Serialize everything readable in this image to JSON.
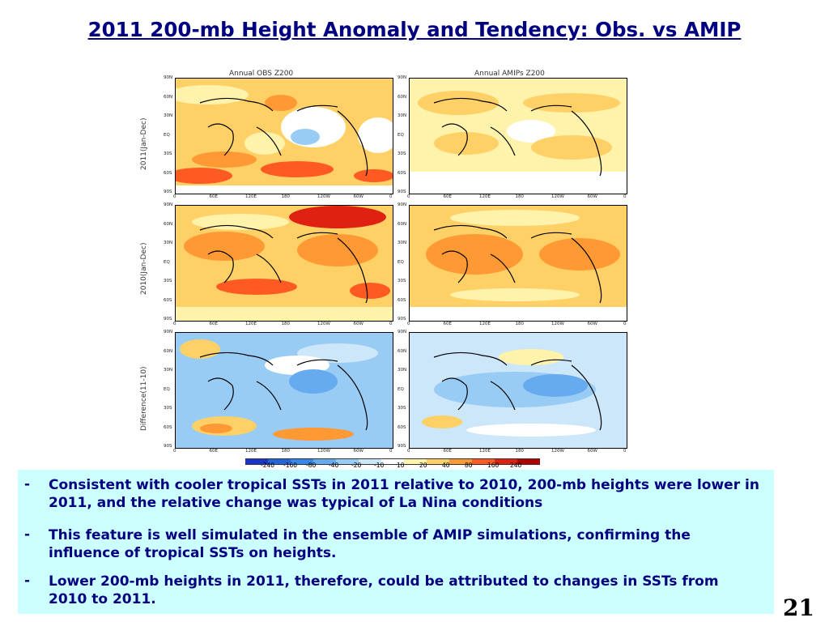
{
  "slide": {
    "title": "2011 200-mb Height Anomaly and Tendency: Obs. vs AMIP",
    "page_number": "21"
  },
  "figure": {
    "column_titles": [
      "Annual OBS Z200",
      "Annual AMIPs Z200"
    ],
    "row_labels": [
      "2011(Jan-Dec)",
      "2010(Jan-Dec)",
      "Difference(11-10)"
    ],
    "lat_labels": [
      "90N",
      "60N",
      "30N",
      "EQ",
      "30S",
      "60S",
      "90S"
    ],
    "lon_labels": [
      "0",
      "60E",
      "120E",
      "180",
      "120W",
      "60W",
      "0"
    ],
    "colorbar": {
      "labels": [
        "-240",
        "-160",
        "-80",
        "-40",
        "-20",
        "-10",
        "10",
        "20",
        "40",
        "80",
        "160",
        "240"
      ],
      "colors": [
        "#1a33cc",
        "#2266dd",
        "#3388ee",
        "#66aaf0",
        "#99ccf5",
        "#cce6fa",
        "#ffffff",
        "#fff2aa",
        "#ffd066",
        "#ff9933",
        "#ff5a22",
        "#e02010",
        "#b00000"
      ]
    }
  },
  "bullets": [
    "Consistent with cooler tropical SSTs in 2011 relative to 2010, 200-mb heights were lower in 2011, and the relative change was typical of La Nina conditions",
    " This feature is well simulated in the ensemble of AMIP simulations, confirming the influence of tropical SSTs on heights.",
    " Lower 200-mb heights in 2011, therefore, could be attributed to changes in SSTs from 2010 to 2011."
  ],
  "bullet_marker": "-"
}
